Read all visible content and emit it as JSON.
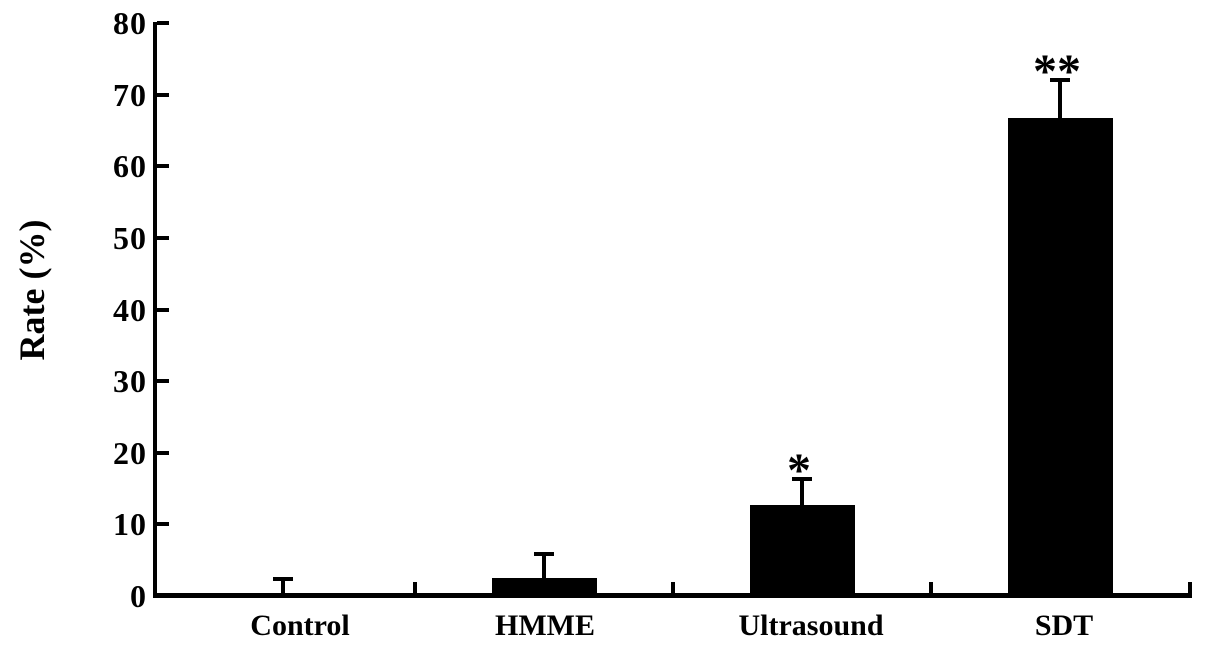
{
  "figure": {
    "background": "#ffffff",
    "ink_color": "#000000"
  },
  "chart_data": {
    "type": "bar",
    "title": "",
    "xlabel": "",
    "ylabel": "Rate (%)",
    "categories": [
      "Control",
      "HMME",
      "Ultrasound",
      "SDT"
    ],
    "values": [
      0.2,
      2.5,
      12.7,
      66.7
    ],
    "error_bar_tops": [
      2.4,
      5.9,
      16.3,
      72.0
    ],
    "significance": [
      "",
      "",
      "*",
      "**"
    ],
    "ylim": [
      0,
      80
    ],
    "yticks": [
      0,
      10,
      20,
      30,
      40,
      50,
      60,
      70,
      80
    ],
    "bar_color": "#000000",
    "grid": false,
    "legend": null
  }
}
